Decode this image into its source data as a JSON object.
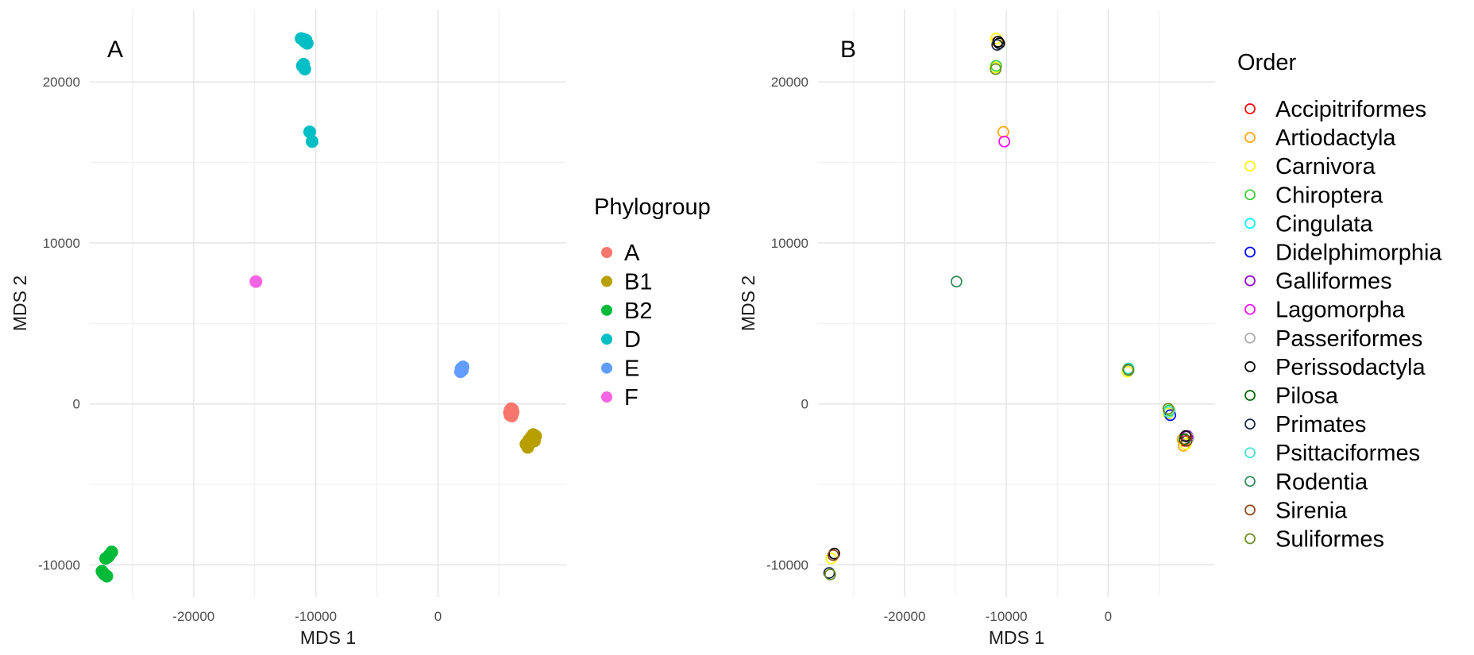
{
  "chart_data": [
    {
      "type": "scatter",
      "panel_tag": "A",
      "xlabel": "MDS 1",
      "ylabel": "MDS 2",
      "xlim": [
        -28500,
        10500
      ],
      "ylim": [
        -12000,
        24500
      ],
      "x_ticks": [
        -20000,
        -10000,
        0
      ],
      "y_ticks": [
        -10000,
        0,
        10000,
        20000
      ],
      "x_tick_labels": [
        "-20000",
        "-10000",
        "0"
      ],
      "y_tick_labels": [
        "-10000",
        "0",
        "10000",
        "20000"
      ],
      "marker": "filled-circle",
      "grid": true,
      "legend": {
        "title": "Phylogroup",
        "placement": "right",
        "entries": [
          {
            "label": "A",
            "color": "#F8766D"
          },
          {
            "label": "B1",
            "color": "#B79F00"
          },
          {
            "label": "B2",
            "color": "#00BA38"
          },
          {
            "label": "D",
            "color": "#00BFC4"
          },
          {
            "label": "E",
            "color": "#619CFF"
          },
          {
            "label": "F",
            "color": "#F564E3"
          }
        ]
      },
      "series": [
        {
          "name": "A",
          "color": "#F8766D",
          "points": [
            [
              5900,
              -400
            ],
            [
              6000,
              -500
            ],
            [
              5950,
              -350
            ],
            [
              6050,
              -450
            ],
            [
              5850,
              -550
            ],
            [
              6100,
              -600
            ],
            [
              5950,
              -650
            ],
            [
              6000,
              -300
            ],
            [
              6150,
              -500
            ],
            [
              5900,
              -700
            ],
            [
              6050,
              -750
            ],
            [
              6100,
              -350
            ]
          ]
        },
        {
          "name": "B1",
          "color": "#B79F00",
          "points": [
            [
              7700,
              -2000
            ],
            [
              7900,
              -2100
            ],
            [
              7500,
              -2200
            ],
            [
              7600,
              -2400
            ],
            [
              7300,
              -2600
            ],
            [
              7800,
              -1900
            ],
            [
              8000,
              -2000
            ],
            [
              7400,
              -2300
            ],
            [
              7200,
              -2500
            ],
            [
              7600,
              -2100
            ],
            [
              7900,
              -2300
            ],
            [
              7350,
              -2700
            ],
            [
              7700,
              -2250
            ]
          ]
        },
        {
          "name": "B2",
          "color": "#00BA38",
          "points": [
            [
              -26700,
              -9200
            ],
            [
              -26900,
              -9400
            ],
            [
              -27200,
              -9600
            ],
            [
              -27000,
              -9500
            ],
            [
              -27400,
              -10500
            ],
            [
              -27300,
              -10600
            ],
            [
              -27100,
              -10700
            ],
            [
              -27500,
              -10400
            ]
          ]
        },
        {
          "name": "D",
          "color": "#00BFC4",
          "points": [
            [
              -11200,
              22700
            ],
            [
              -10900,
              22500
            ],
            [
              -10700,
              22400
            ],
            [
              -10800,
              22600
            ],
            [
              -11000,
              22650
            ],
            [
              -11100,
              21000
            ],
            [
              -10900,
              20800
            ],
            [
              -11000,
              21100
            ],
            [
              -10500,
              16900
            ],
            [
              -10300,
              16300
            ]
          ]
        },
        {
          "name": "E",
          "color": "#619CFF",
          "points": [
            [
              1900,
              2200
            ],
            [
              2000,
              2100
            ],
            [
              1850,
              2000
            ],
            [
              2050,
              2300
            ]
          ]
        },
        {
          "name": "F",
          "color": "#F564E3",
          "points": [
            [
              -14900,
              7600
            ]
          ]
        }
      ]
    },
    {
      "type": "scatter",
      "panel_tag": "B",
      "xlabel": "MDS 1",
      "ylabel": "MDS 2",
      "xlim": [
        -28500,
        10500
      ],
      "ylim": [
        -12000,
        24500
      ],
      "x_ticks": [
        -20000,
        -10000,
        0
      ],
      "y_ticks": [
        -10000,
        0,
        10000,
        20000
      ],
      "x_tick_labels": [
        "-20000",
        "-10000",
        "0"
      ],
      "y_tick_labels": [
        "-10000",
        "0",
        "10000",
        "20000"
      ],
      "marker": "open-circle",
      "grid": true,
      "legend": {
        "title": "Order",
        "placement": "right",
        "entries": [
          {
            "label": "Accipitriformes",
            "color": "#FF0000"
          },
          {
            "label": "Artiodactyla",
            "color": "#FFA500"
          },
          {
            "label": "Carnivora",
            "color": "#FFFF00"
          },
          {
            "label": "Chiroptera",
            "color": "#32CD32"
          },
          {
            "label": "Cingulata",
            "color": "#00FFFF"
          },
          {
            "label": "Didelphimorphia",
            "color": "#0000FF"
          },
          {
            "label": "Galliformes",
            "color": "#9400D3"
          },
          {
            "label": "Lagomorpha",
            "color": "#FF00FF"
          },
          {
            "label": "Passeriformes",
            "color": "#A9A9A9"
          },
          {
            "label": "Perissodactyla",
            "color": "#000000"
          },
          {
            "label": "Pilosa",
            "color": "#006400"
          },
          {
            "label": "Primates",
            "color": "#1C2A48"
          },
          {
            "label": "Psittaciformes",
            "color": "#40E0D0"
          },
          {
            "label": "Rodentia",
            "color": "#2E8B57"
          },
          {
            "label": "Sirenia",
            "color": "#8B4513"
          },
          {
            "label": "Suliformes",
            "color": "#6B8E23"
          }
        ]
      },
      "series": [
        {
          "name": "Accipitriformes",
          "color": "#FF0000",
          "points": [
            [
              7700,
              -2000
            ],
            [
              7500,
              -2300
            ]
          ]
        },
        {
          "name": "Artiodactyla",
          "color": "#FFA500",
          "points": [
            [
              -10300,
              16900
            ],
            [
              7400,
              -2600
            ],
            [
              7300,
              -2200
            ],
            [
              -10900,
              22500
            ]
          ]
        },
        {
          "name": "Carnivora",
          "color": "#FFFF00",
          "points": [
            [
              -11000,
              22700
            ],
            [
              1900,
              2000
            ],
            [
              7600,
              -2500
            ],
            [
              -27200,
              -9600
            ],
            [
              5900,
              -600
            ],
            [
              -11100,
              20900
            ]
          ]
        },
        {
          "name": "Chiroptera",
          "color": "#32CD32",
          "points": [
            [
              6000,
              -400
            ],
            [
              -11000,
              21000
            ]
          ]
        },
        {
          "name": "Cingulata",
          "color": "#00FFFF",
          "points": [
            [
              2000,
              2200
            ]
          ]
        },
        {
          "name": "Didelphimorphia",
          "color": "#0000FF",
          "points": [
            [
              6100,
              -700
            ]
          ]
        },
        {
          "name": "Galliformes",
          "color": "#9400D3",
          "points": [
            [
              7800,
              -2000
            ]
          ]
        },
        {
          "name": "Lagomorpha",
          "color": "#FF00FF",
          "points": [
            [
              -10200,
              16300
            ]
          ]
        },
        {
          "name": "Passeriformes",
          "color": "#A9A9A9",
          "points": [
            [
              7900,
              -2100
            ]
          ]
        },
        {
          "name": "Perissodactyla",
          "color": "#000000",
          "points": [
            [
              -10800,
              22500
            ],
            [
              -10700,
              22400
            ],
            [
              -26900,
              -9300
            ],
            [
              7600,
              -2000
            ]
          ]
        },
        {
          "name": "Pilosa",
          "color": "#006400",
          "points": [
            [
              7500,
              -2200
            ]
          ]
        },
        {
          "name": "Primates",
          "color": "#1C2A48",
          "points": [
            [
              -27400,
              -10500
            ],
            [
              -10900,
              22300
            ]
          ]
        },
        {
          "name": "Psittaciformes",
          "color": "#40E0D0",
          "points": [
            [
              5950,
              -500
            ]
          ]
        },
        {
          "name": "Rodentia",
          "color": "#2E8B57",
          "points": [
            [
              -14900,
              7600
            ],
            [
              2000,
              2100
            ]
          ]
        },
        {
          "name": "Sirenia",
          "color": "#8B4513",
          "points": [
            [
              -27000,
              -9400
            ],
            [
              7700,
              -2300
            ]
          ]
        },
        {
          "name": "Suliformes",
          "color": "#6B8E23",
          "points": [
            [
              -27300,
              -10600
            ],
            [
              1950,
              2150
            ],
            [
              5900,
              -300
            ],
            [
              -11050,
              20800
            ]
          ]
        }
      ]
    }
  ]
}
